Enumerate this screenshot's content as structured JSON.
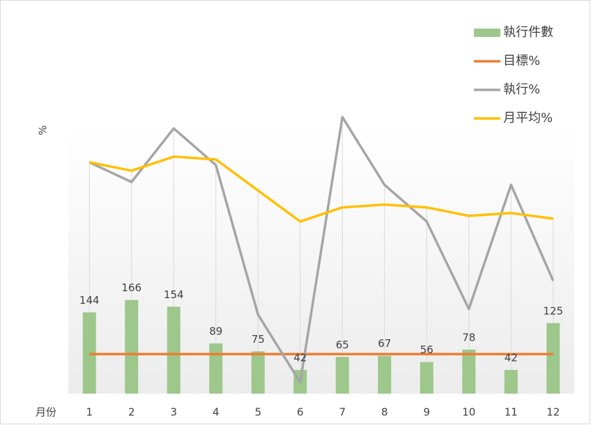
{
  "chart_data": {
    "type": "combo",
    "x_label": "月份",
    "y2_label": "%",
    "categories": [
      "1",
      "2",
      "3",
      "4",
      "5",
      "6",
      "7",
      "8",
      "9",
      "10",
      "11",
      "12"
    ],
    "ylim": [
      0,
      500
    ],
    "y2lim": [
      0,
      100
    ],
    "legend": "top-right",
    "series": [
      {
        "name": "執行件數",
        "type": "bar",
        "color": "#9dc78b",
        "values": [
          144,
          166,
          154,
          89,
          75,
          42,
          65,
          67,
          56,
          78,
          42,
          125
        ]
      },
      {
        "name": "目標%",
        "type": "line",
        "axis": "y2",
        "color": "#ed7d31",
        "values": [
          14,
          14,
          14,
          14,
          14,
          14,
          14,
          14,
          14,
          14,
          14,
          14
        ]
      },
      {
        "name": "執行%",
        "type": "line",
        "axis": "y2",
        "color": "#a5a5a5",
        "values": [
          82,
          75,
          94,
          81,
          28,
          4,
          98,
          74,
          61,
          30,
          74,
          40
        ]
      },
      {
        "name": "月平均%",
        "type": "line",
        "axis": "y2",
        "color": "#ffc000",
        "values": [
          82,
          79,
          84,
          83,
          72,
          61,
          66,
          67,
          66,
          63,
          64,
          62
        ]
      }
    ]
  }
}
